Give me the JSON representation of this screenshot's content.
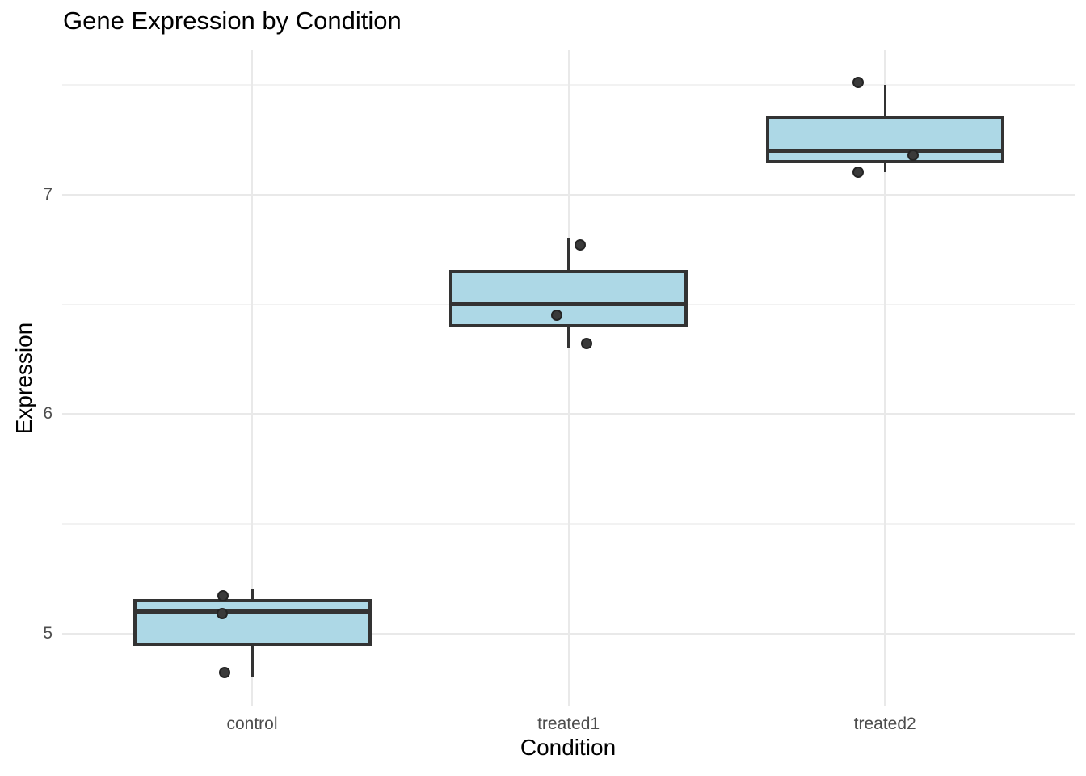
{
  "chart_data": {
    "type": "boxplot",
    "title": "Gene Expression by Condition",
    "xlabel": "Condition",
    "ylabel": "Expression",
    "categories": [
      "control",
      "treated1",
      "treated2"
    ],
    "series": [
      {
        "name": "control",
        "values": [
          4.8,
          5.1,
          5.2
        ],
        "stats": {
          "min": 4.8,
          "q1": 4.95,
          "median": 5.1,
          "q3": 5.15,
          "max": 5.2
        },
        "points": [
          {
            "value": 5.17,
            "dx": -36
          },
          {
            "value": 5.09,
            "dx": -37
          },
          {
            "value": 4.82,
            "dx": -34
          }
        ]
      },
      {
        "name": "treated1",
        "values": [
          6.3,
          6.5,
          6.8
        ],
        "stats": {
          "min": 6.3,
          "q1": 6.4,
          "median": 6.5,
          "q3": 6.65,
          "max": 6.8
        },
        "points": [
          {
            "value": 6.77,
            "dx": 14
          },
          {
            "value": 6.45,
            "dx": -15
          },
          {
            "value": 6.32,
            "dx": 22
          }
        ]
      },
      {
        "name": "treated2",
        "values": [
          7.1,
          7.2,
          7.5
        ],
        "stats": {
          "min": 7.1,
          "q1": 7.15,
          "median": 7.2,
          "q3": 7.35,
          "max": 7.5
        },
        "points": [
          {
            "value": 7.51,
            "dx": -33
          },
          {
            "value": 7.18,
            "dx": 35
          },
          {
            "value": 7.1,
            "dx": -33
          }
        ]
      }
    ],
    "y_axis": {
      "tick_labels": [
        "5",
        "6",
        "7"
      ],
      "ticks": [
        5,
        6,
        7
      ],
      "minor_ticks": [
        5.5,
        6.5,
        7.5
      ],
      "domain": [
        4.66,
        7.65
      ]
    },
    "grid": true,
    "legend": false,
    "colors": {
      "box_fill": "#ADD8E6",
      "box_stroke": "#333333",
      "point": "#3a3a3a",
      "grid_major": "#E9E9E9",
      "grid_minor": "#F2F2F2",
      "tick_label": "#4D4D4D",
      "text": "#000000",
      "background": "#FFFFFF"
    }
  }
}
